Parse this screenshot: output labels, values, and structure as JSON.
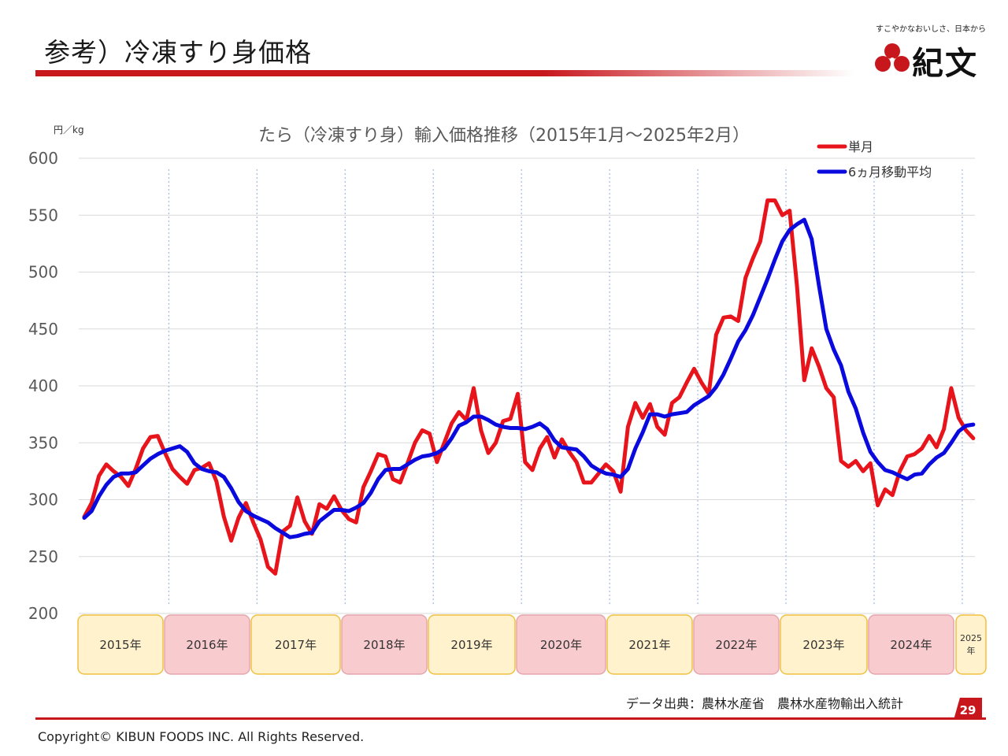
{
  "slide": {
    "title": "参考）冷凍すり身価格",
    "source": "データ出典：農林水産省　農林水産物輸出入統計",
    "page_number": "29",
    "copyright": "Copyright©  KIBUN FOODS INC. All Rights Reserved."
  },
  "logo": {
    "tagline": "すこやかなおいしさ、日本から",
    "wordmark": "紀文",
    "brand_color": "#c8161d"
  },
  "colors": {
    "monthly": "#e8141b",
    "moving_avg": "#0a0adf",
    "year_odd_fill": "#fff2cc",
    "year_odd_border": "#f0c040",
    "year_even_fill": "#f8cbcf",
    "year_even_border": "#e6a6ad"
  },
  "chart_data": {
    "type": "line",
    "title": "たら（冷凍すり身）輸入価格推移（2015年1月～2025年2月）",
    "ylabel": "円／kg",
    "ylim": [
      200,
      600
    ],
    "yticks": [
      200,
      250,
      300,
      350,
      400,
      450,
      500,
      550,
      600
    ],
    "grid": true,
    "legend_position": "top-right",
    "x_period": "2015-01 to 2025-02 (monthly)",
    "year_labels": [
      "2015年",
      "2016年",
      "2017年",
      "2018年",
      "2019年",
      "2020年",
      "2021年",
      "2022年",
      "2023年",
      "2024年",
      "2025年"
    ],
    "series": [
      {
        "name": "単月",
        "values": [
          285,
          297,
          321,
          331,
          325,
          320,
          312,
          327,
          345,
          355,
          356,
          341,
          327,
          320,
          314,
          326,
          328,
          332,
          316,
          285,
          264,
          284,
          297,
          280,
          265,
          241,
          235,
          272,
          277,
          302,
          281,
          270,
          296,
          292,
          303,
          291,
          283,
          280,
          311,
          325,
          340,
          338,
          318,
          315,
          332,
          350,
          361,
          358,
          333,
          350,
          367,
          377,
          370,
          398,
          361,
          341,
          350,
          369,
          371,
          393,
          333,
          326,
          345,
          355,
          337,
          353,
          342,
          333,
          315,
          315,
          323,
          331,
          325,
          307,
          364,
          385,
          372,
          384,
          364,
          357,
          385,
          390,
          403,
          415,
          403,
          393,
          445,
          460,
          461,
          457,
          495,
          512,
          527,
          563,
          563,
          550,
          554,
          488,
          405,
          433,
          417,
          398,
          390,
          334,
          329,
          334,
          325,
          332,
          295,
          309,
          304,
          325,
          338,
          340,
          345,
          356,
          346,
          362,
          398,
          372,
          361,
          354
        ]
      },
      {
        "name": "6ヵ月移動平均",
        "values": [
          284,
          290,
          303,
          313,
          320,
          323,
          323,
          324,
          330,
          336,
          340,
          343,
          345,
          347,
          342,
          332,
          327,
          325,
          324,
          320,
          310,
          298,
          290,
          286,
          283,
          280,
          275,
          271,
          267,
          268,
          270,
          271,
          281,
          286,
          291,
          291,
          290,
          293,
          297,
          306,
          318,
          326,
          327,
          327,
          331,
          335,
          338,
          339,
          341,
          345,
          354,
          365,
          368,
          373,
          373,
          370,
          366,
          364,
          363,
          363,
          362,
          364,
          367,
          362,
          352,
          346,
          345,
          344,
          338,
          330,
          326,
          323,
          322,
          320,
          327,
          345,
          359,
          375,
          375,
          373,
          375,
          376,
          377,
          383,
          387,
          391,
          399,
          410,
          424,
          439,
          449,
          462,
          478,
          494,
          511,
          527,
          537,
          542,
          546,
          529,
          488,
          450,
          432,
          418,
          395,
          380,
          359,
          342,
          333,
          326,
          324,
          321,
          318,
          322,
          323,
          331,
          337,
          341,
          350,
          360,
          365,
          366
        ]
      }
    ]
  }
}
